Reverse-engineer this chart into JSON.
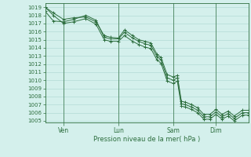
{
  "xlabel": "Pression niveau de la mer( hPa )",
  "ylim": [
    1004.8,
    1019.5
  ],
  "yticks": [
    1005,
    1006,
    1007,
    1008,
    1009,
    1010,
    1011,
    1012,
    1013,
    1014,
    1015,
    1016,
    1017,
    1018,
    1019
  ],
  "bg_color": "#d4f0ec",
  "grid_color": "#b8dfd9",
  "line_color": "#2d6e3e",
  "xtick_labels": [
    "Ven",
    "Lun",
    "Sam",
    "Dim"
  ],
  "xtick_positions": [
    0.09,
    0.36,
    0.63,
    0.84
  ],
  "vline_positions": [
    0.09,
    0.36,
    0.63,
    0.84
  ],
  "lines": [
    [
      0.0,
      1019.0,
      0.04,
      1018.3,
      0.09,
      1017.5,
      0.14,
      1017.7,
      0.2,
      1017.8,
      0.25,
      1017.2,
      0.29,
      1015.5,
      0.32,
      1015.3,
      0.36,
      1015.2,
      0.39,
      1016.2,
      0.43,
      1015.5,
      0.46,
      1015.0,
      0.49,
      1014.8,
      0.52,
      1014.6,
      0.55,
      1013.2,
      0.57,
      1012.8,
      0.6,
      1010.7,
      0.63,
      1010.4,
      0.65,
      1010.6,
      0.67,
      1007.4,
      0.69,
      1007.3,
      0.72,
      1007.0,
      0.75,
      1006.6,
      0.78,
      1005.8,
      0.81,
      1005.8,
      0.84,
      1006.4,
      0.87,
      1005.8,
      0.9,
      1006.2,
      0.93,
      1005.6,
      0.97,
      1006.3,
      1.0,
      1006.3
    ],
    [
      0.0,
      1018.5,
      0.04,
      1017.3,
      0.09,
      1017.2,
      0.14,
      1017.5,
      0.2,
      1018.0,
      0.25,
      1017.4,
      0.29,
      1015.3,
      0.32,
      1015.1,
      0.36,
      1015.1,
      0.39,
      1015.9,
      0.43,
      1015.2,
      0.46,
      1014.8,
      0.49,
      1014.5,
      0.52,
      1014.3,
      0.55,
      1012.9,
      0.57,
      1012.5,
      0.6,
      1010.3,
      0.63,
      1010.0,
      0.65,
      1010.3,
      0.67,
      1007.1,
      0.69,
      1007.0,
      0.72,
      1006.7,
      0.75,
      1006.3,
      0.78,
      1005.5,
      0.81,
      1005.5,
      0.84,
      1006.1,
      0.87,
      1005.5,
      0.9,
      1005.9,
      0.93,
      1005.3,
      0.97,
      1006.0,
      1.0,
      1006.0
    ],
    [
      0.0,
      1019.0,
      0.04,
      1018.0,
      0.09,
      1017.0,
      0.14,
      1017.2,
      0.2,
      1017.6,
      0.25,
      1016.9,
      0.29,
      1015.0,
      0.32,
      1014.8,
      0.36,
      1014.8,
      0.39,
      1015.5,
      0.43,
      1014.8,
      0.46,
      1014.4,
      0.49,
      1014.1,
      0.52,
      1013.9,
      0.55,
      1012.5,
      0.57,
      1012.1,
      0.6,
      1009.9,
      0.63,
      1009.6,
      0.65,
      1009.9,
      0.67,
      1006.8,
      0.69,
      1006.7,
      0.72,
      1006.4,
      0.75,
      1006.0,
      0.78,
      1005.2,
      0.81,
      1005.2,
      0.84,
      1005.8,
      0.87,
      1005.2,
      0.9,
      1005.6,
      0.93,
      1005.0,
      0.97,
      1005.7,
      1.0,
      1005.7
    ]
  ]
}
